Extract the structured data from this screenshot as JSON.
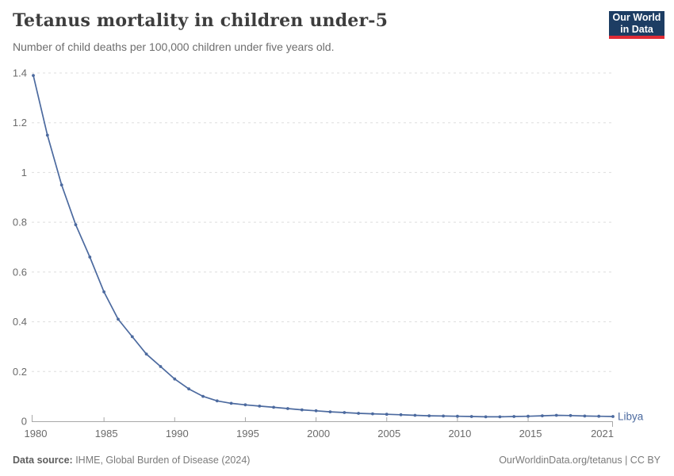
{
  "header": {
    "title": "Tetanus mortality in children under-5",
    "subtitle": "Number of child deaths per 100,000 children under five years old.",
    "logo": {
      "line1": "Our World",
      "line2": "in Data"
    }
  },
  "chart_data": {
    "type": "line",
    "title": "Tetanus mortality in children under-5",
    "xlabel": "",
    "ylabel": "Number of child deaths per 100,000 children under five years old",
    "xlim": [
      1980,
      2021
    ],
    "ylim": [
      0,
      1.4
    ],
    "grid": "horizontal-dashed",
    "legend_position": "end-of-line",
    "x_ticks": [
      1980,
      1985,
      1990,
      1995,
      2000,
      2005,
      2010,
      2015,
      2021
    ],
    "y_ticks": [
      0,
      0.2,
      0.4,
      0.6,
      0.8,
      1,
      1.2,
      1.4
    ],
    "x": [
      1980,
      1981,
      1982,
      1983,
      1984,
      1985,
      1986,
      1987,
      1988,
      1989,
      1990,
      1991,
      1992,
      1993,
      1994,
      1995,
      1996,
      1997,
      1998,
      1999,
      2000,
      2001,
      2002,
      2003,
      2004,
      2005,
      2006,
      2007,
      2008,
      2009,
      2010,
      2011,
      2012,
      2013,
      2014,
      2015,
      2016,
      2017,
      2018,
      2019,
      2020,
      2021
    ],
    "series": [
      {
        "name": "Libya",
        "color": "#4c6a9f",
        "values": [
          1.39,
          1.15,
          0.95,
          0.79,
          0.66,
          0.52,
          0.41,
          0.34,
          0.27,
          0.22,
          0.17,
          0.13,
          0.1,
          0.082,
          0.072,
          0.066,
          0.061,
          0.056,
          0.051,
          0.046,
          0.042,
          0.038,
          0.035,
          0.032,
          0.03,
          0.028,
          0.026,
          0.024,
          0.022,
          0.021,
          0.02,
          0.019,
          0.018,
          0.018,
          0.019,
          0.02,
          0.022,
          0.024,
          0.023,
          0.021,
          0.02,
          0.019
        ]
      }
    ]
  },
  "footer": {
    "source_label": "Data source:",
    "source_text": " IHME, Global Burden of Disease (2024)",
    "link_text": "OurWorldinData.org/tetanus | CC BY"
  },
  "colors": {
    "line": "#4c6a9f",
    "grid": "#dedede",
    "axis": "#a8a8a8",
    "tick_label": "#6b6b6b",
    "title": "#3d3d3d",
    "logo_bg": "#1d3d63",
    "logo_bar": "#e02b35"
  }
}
